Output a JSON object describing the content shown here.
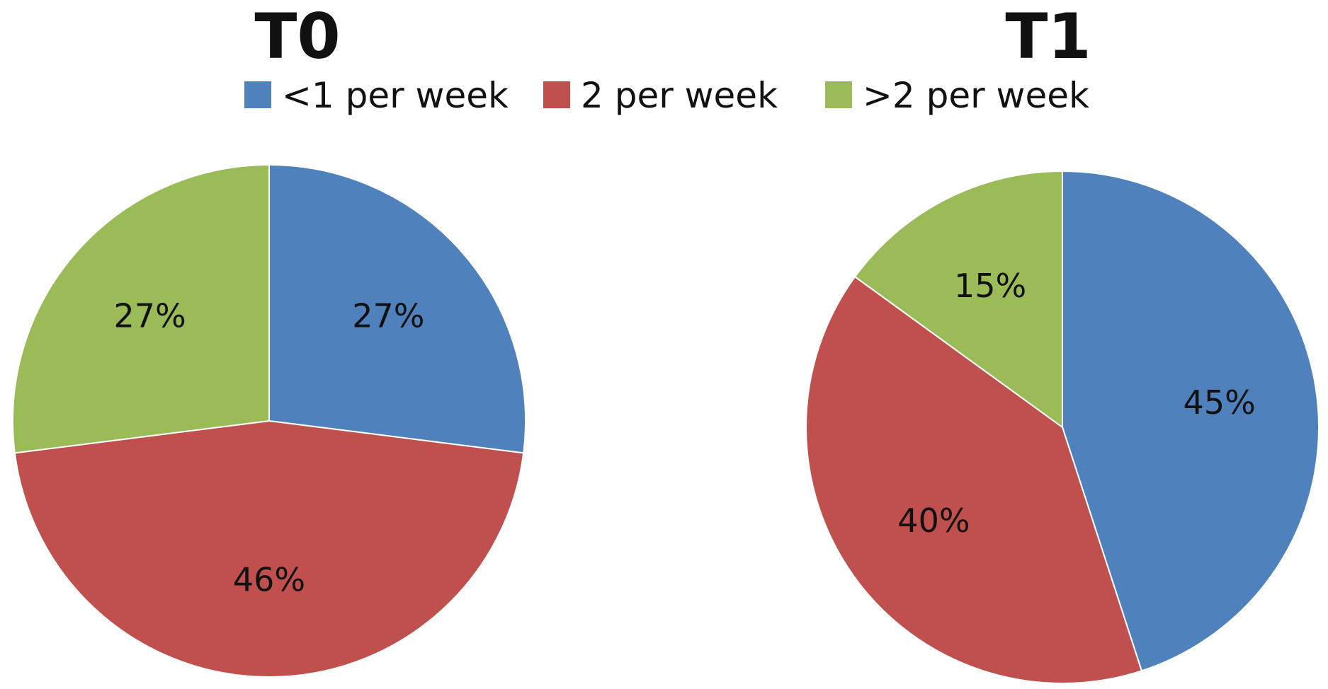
{
  "chart_data": [
    {
      "type": "pie",
      "title": "T0",
      "categories": [
        "<1 per week",
        "2 per week",
        ">2 per week"
      ],
      "values": [
        27,
        46,
        27
      ],
      "labels": [
        "27%",
        "46%",
        "27%"
      ]
    },
    {
      "type": "pie",
      "title": "T1",
      "categories": [
        "<1 per week",
        "2 per week",
        ">2 per week"
      ],
      "values": [
        45,
        40,
        15
      ],
      "labels": [
        "45%",
        "40%",
        "15%"
      ]
    }
  ],
  "legend": {
    "placement": "top",
    "items": [
      {
        "label": "<1 per week",
        "color": "#4f81bd"
      },
      {
        "label": "2 per week",
        "color": "#c0504d"
      },
      {
        "label": ">2 per week",
        "color": "#9bbb59"
      }
    ]
  },
  "colors": [
    "#4f81bd",
    "#c0504d",
    "#9bbb59"
  ]
}
